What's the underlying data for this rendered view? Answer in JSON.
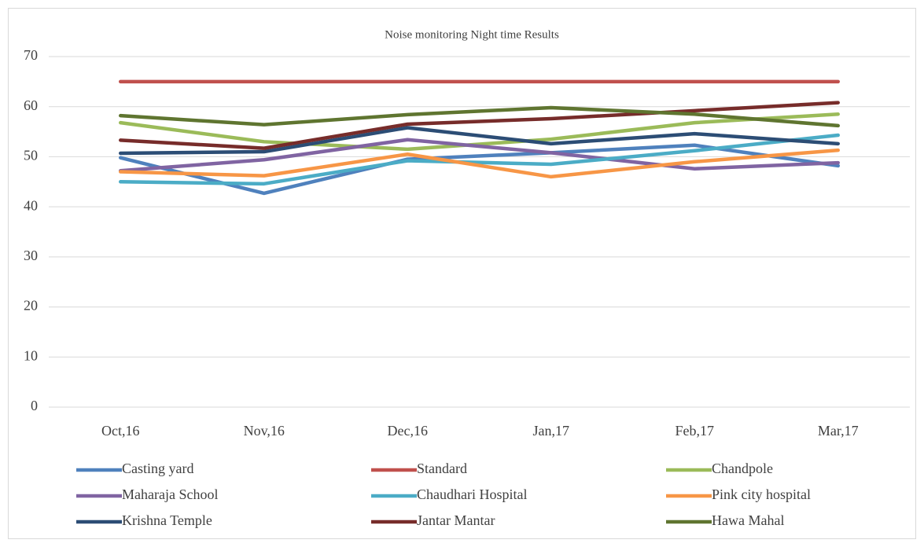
{
  "chart_data": {
    "type": "line",
    "title": "Noise monitoring  Night time Results",
    "categories": [
      "Oct,16",
      "Nov,16",
      "Dec,16",
      "Jan,17",
      "Feb,17",
      "Mar,17"
    ],
    "ylim": [
      0,
      70
    ],
    "yticks": [
      0,
      10,
      20,
      30,
      40,
      50,
      60,
      70
    ],
    "grid": true,
    "legend": "bottom",
    "series": [
      {
        "name": "Casting yard",
        "color": "#4f81bd",
        "values": [
          49.8,
          42.7,
          49.5,
          50.8,
          52.3,
          48.2
        ]
      },
      {
        "name": "Standard",
        "color": "#c0504d",
        "values": [
          65,
          65,
          65,
          65,
          65,
          65
        ]
      },
      {
        "name": "Chandpole",
        "color": "#9bbb59",
        "values": [
          56.8,
          53,
          51.5,
          53.5,
          56.8,
          58.5
        ]
      },
      {
        "name": "Maharaja School",
        "color": "#8064a2",
        "values": [
          47.2,
          49.4,
          53.4,
          50.8,
          47.6,
          48.8
        ]
      },
      {
        "name": "Chaudhari Hospital",
        "color": "#4bacc6",
        "values": [
          45,
          44.6,
          49.2,
          48.5,
          51.2,
          54.3
        ]
      },
      {
        "name": "Pink city hospital",
        "color": "#f79646",
        "values": [
          47,
          46.2,
          50.5,
          46,
          49,
          51.3
        ]
      },
      {
        "name": "Krishna Temple",
        "color": "#2c4d75",
        "values": [
          50.7,
          51,
          55.8,
          52.6,
          54.6,
          52.6
        ]
      },
      {
        "name": "Jantar Mantar",
        "color": "#772c2a",
        "values": [
          53.3,
          51.7,
          56.5,
          57.6,
          59.2,
          60.8
        ]
      },
      {
        "name": "Hawa Mahal",
        "color": "#5f7530",
        "values": [
          58.2,
          56.4,
          58.4,
          59.8,
          58.5,
          56.2
        ]
      }
    ]
  }
}
